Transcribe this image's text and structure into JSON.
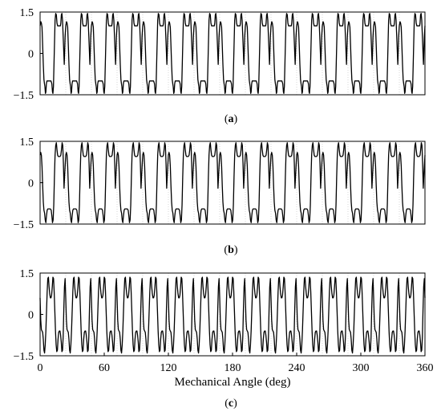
{
  "chart_data": [
    {
      "type": "line",
      "caption": "(a)",
      "ylim": [
        -1.5,
        1.5
      ],
      "y_ticks": [
        "1.5",
        "0",
        "-1.5"
      ],
      "xlim": [
        0,
        360
      ],
      "x_ticks": [],
      "xlabel": "",
      "grid": true,
      "series": [
        {
          "periods": 15,
          "x": [
            0,
            0.7,
            1.2,
            1.8,
            2.4,
            3.0,
            3.6,
            4.1,
            4.5,
            5.0,
            5.4,
            5.9,
            6.4,
            7.0,
            7.8,
            8.6,
            9.4,
            10.2,
            11.0,
            11.6,
            12.0,
            12.5,
            13.0,
            13.5,
            14.0,
            14.6,
            15.2,
            15.8,
            16.4,
            17.0,
            17.6,
            18.1,
            18.5,
            19.0,
            19.4,
            19.9,
            20.4,
            21.0,
            21.8,
            22.6,
            23.4,
            24.0
          ],
          "y": [
            1.0,
            1.15,
            1.1,
            0.95,
            0.3,
            -0.4,
            -0.95,
            -1.1,
            -1.2,
            -1.45,
            -1.4,
            -1.1,
            -1.0,
            -1.0,
            -1.0,
            -1.0,
            -1.0,
            -1.0,
            -1.1,
            -1.4,
            -1.45,
            -1.2,
            -0.4,
            0.4,
            1.2,
            1.45,
            1.4,
            1.1,
            1.0,
            1.0,
            1.0,
            1.0,
            1.0,
            1.0,
            1.1,
            1.4,
            1.45,
            1.2,
            0.4,
            -0.4,
            0.6,
            1.0
          ]
        }
      ]
    },
    {
      "type": "line",
      "caption": "(b)",
      "ylim": [
        -1.5,
        1.5
      ],
      "y_ticks": [
        "1.5",
        "0",
        "-1.5"
      ],
      "xlim": [
        0,
        360
      ],
      "x_ticks": [],
      "xlabel": "",
      "grid": true,
      "series": [
        {
          "periods": 15,
          "x": [
            0,
            0.6,
            1.2,
            1.8,
            2.4,
            3.0,
            3.6,
            4.2,
            4.8,
            5.4,
            6.0,
            6.6,
            7.2,
            8.0,
            8.8,
            9.6,
            10.4,
            11.0,
            11.6,
            12.2,
            12.8,
            13.4,
            14.0,
            14.6,
            15.2,
            15.8,
            16.4,
            17.0,
            17.8,
            18.6,
            19.4,
            20.0,
            20.6,
            21.2,
            21.8,
            22.4,
            23.0,
            24.0
          ],
          "y": [
            1.0,
            1.1,
            1.0,
            0.6,
            -0.1,
            -0.7,
            -1.0,
            -1.1,
            -1.35,
            -1.45,
            -1.2,
            -1.0,
            -0.95,
            -0.95,
            -0.95,
            -0.95,
            -1.0,
            -1.2,
            -1.45,
            -1.35,
            -0.8,
            0.2,
            1.0,
            1.35,
            1.45,
            1.2,
            1.0,
            0.95,
            0.95,
            0.95,
            1.0,
            1.2,
            1.45,
            1.35,
            0.7,
            -0.2,
            0.3,
            1.0
          ]
        }
      ]
    },
    {
      "type": "line",
      "caption": "(c)",
      "ylim": [
        -1.5,
        1.5
      ],
      "y_ticks": [
        "1.5",
        "0",
        "-1.5"
      ],
      "xlim": [
        0,
        360
      ],
      "x_ticks": [
        "0",
        "60",
        "120",
        "180",
        "240",
        "300",
        "360"
      ],
      "xlabel": "Mechanical Angle (deg)",
      "grid": true,
      "series": [
        {
          "periods": 15,
          "x": [
            0,
            0.6,
            1.2,
            1.8,
            2.4,
            3.0,
            3.6,
            4.2,
            4.8,
            5.4,
            6.0,
            6.6,
            7.2,
            7.8,
            8.4,
            9.0,
            9.6,
            10.2,
            10.8,
            11.4,
            12.0,
            12.6,
            13.2,
            13.8,
            14.4,
            15.0,
            15.6,
            16.2,
            16.8,
            17.4,
            18.0,
            18.6,
            19.2,
            19.8,
            20.4,
            21.0,
            21.6,
            22.2,
            22.8,
            23.4,
            24.0
          ],
          "y": [
            0.6,
            -0.2,
            -0.55,
            -0.6,
            -0.65,
            -0.9,
            -1.3,
            -1.4,
            -1.1,
            -0.6,
            0.1,
            0.8,
            1.3,
            1.35,
            1.0,
            0.75,
            0.6,
            0.6,
            0.7,
            1.0,
            1.35,
            1.3,
            0.8,
            0.1,
            -0.6,
            -1.1,
            -1.35,
            -1.3,
            -0.9,
            -0.65,
            -0.6,
            -0.6,
            -0.75,
            -1.0,
            -1.35,
            -1.3,
            -0.8,
            0.2,
            1.0,
            1.3,
            0.6
          ]
        }
      ]
    }
  ]
}
